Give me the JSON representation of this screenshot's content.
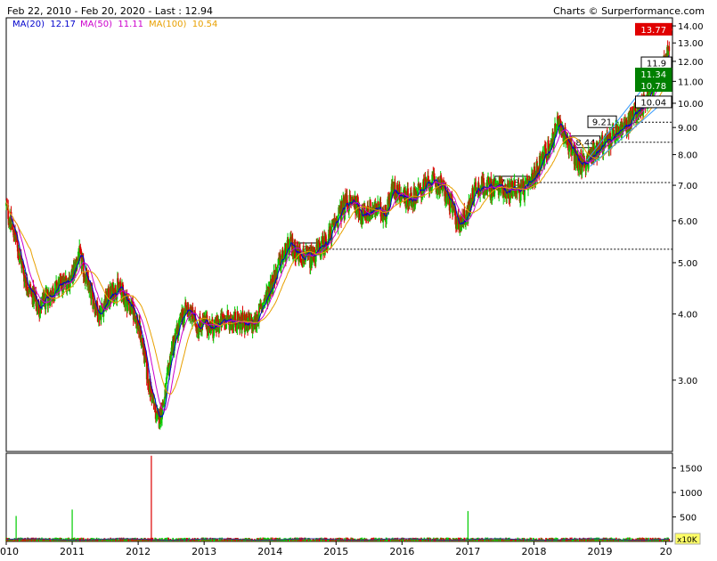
{
  "header": {
    "range_text": "Feb 22, 2010 - Feb 20, 2020 - Last : 12.94",
    "credit_text": "Charts © Surperformance.com"
  },
  "moving_averages": [
    {
      "label": "MA(20)",
      "value": "12.17",
      "color": "#0000cc"
    },
    {
      "label": "MA(50)",
      "value": "11.11",
      "color": "#cc00cc"
    },
    {
      "label": "MA(100)",
      "value": "10.54",
      "color": "#e8a000"
    }
  ],
  "colors": {
    "up": "#00cc00",
    "down": "#dd0000",
    "ma20": "#0000cc",
    "ma50": "#cc00cc",
    "ma100": "#e8a000",
    "trend": "#3399ff",
    "resistance_box": "#e00000",
    "support_box": "#008000",
    "volume_line": "#333399"
  },
  "chart_data": {
    "type": "candlestick",
    "y_scale": "log",
    "ylim": [
      2.2,
      14.5
    ],
    "y_ticks": [
      "3.00",
      "4.00",
      "5.00",
      "6.00",
      "7.00",
      "8.00",
      "9.00",
      "10.00",
      "11.00",
      "12.00",
      "13.00",
      "14.00"
    ],
    "x_labels": [
      "2010",
      "2011",
      "2012",
      "2013",
      "2014",
      "2015",
      "2016",
      "2017",
      "2018",
      "2019",
      "20"
    ],
    "price_path": [
      [
        2010.0,
        6.4
      ],
      [
        2010.15,
        5.5
      ],
      [
        2010.3,
        4.6
      ],
      [
        2010.5,
        4.1
      ],
      [
        2010.7,
        4.4
      ],
      [
        2010.9,
        4.6
      ],
      [
        2011.0,
        4.7
      ],
      [
        2011.1,
        5.2
      ],
      [
        2011.25,
        4.5
      ],
      [
        2011.4,
        4.0
      ],
      [
        2011.55,
        4.3
      ],
      [
        2011.7,
        4.5
      ],
      [
        2011.85,
        4.2
      ],
      [
        2011.95,
        4.0
      ],
      [
        2012.05,
        3.6
      ],
      [
        2012.15,
        3.0
      ],
      [
        2012.3,
        2.5
      ],
      [
        2012.4,
        2.75
      ],
      [
        2012.5,
        3.4
      ],
      [
        2012.65,
        3.9
      ],
      [
        2012.75,
        4.1
      ],
      [
        2012.9,
        3.8
      ],
      [
        2013.0,
        3.85
      ],
      [
        2013.15,
        3.75
      ],
      [
        2013.3,
        3.9
      ],
      [
        2013.45,
        3.9
      ],
      [
        2013.6,
        3.85
      ],
      [
        2013.75,
        3.8
      ],
      [
        2013.9,
        4.2
      ],
      [
        2014.0,
        4.5
      ],
      [
        2014.15,
        5.0
      ],
      [
        2014.3,
        5.4
      ],
      [
        2014.45,
        5.2
      ],
      [
        2014.6,
        5.1
      ],
      [
        2014.75,
        5.3
      ],
      [
        2014.9,
        5.6
      ],
      [
        2015.0,
        6.0
      ],
      [
        2015.15,
        6.5
      ],
      [
        2015.3,
        6.5
      ],
      [
        2015.4,
        6.1
      ],
      [
        2015.5,
        6.3
      ],
      [
        2015.6,
        6.3
      ],
      [
        2015.75,
        6.2
      ],
      [
        2015.85,
        6.9
      ],
      [
        2016.0,
        6.7
      ],
      [
        2016.15,
        6.6
      ],
      [
        2016.3,
        6.9
      ],
      [
        2016.45,
        7.1
      ],
      [
        2016.6,
        7.0
      ],
      [
        2016.75,
        6.4
      ],
      [
        2016.85,
        5.9
      ],
      [
        2017.0,
        6.2
      ],
      [
        2017.1,
        6.9
      ],
      [
        2017.25,
        7.0
      ],
      [
        2017.4,
        6.9
      ],
      [
        2017.5,
        7.0
      ],
      [
        2017.6,
        6.8
      ],
      [
        2017.7,
        7.0
      ],
      [
        2017.8,
        6.8
      ],
      [
        2017.95,
        7.0
      ],
      [
        2018.1,
        7.8
      ],
      [
        2018.25,
        8.3
      ],
      [
        2018.35,
        9.1
      ],
      [
        2018.45,
        8.8
      ],
      [
        2018.55,
        8.3
      ],
      [
        2018.65,
        7.8
      ],
      [
        2018.75,
        7.7
      ],
      [
        2018.85,
        7.9
      ],
      [
        2019.0,
        8.3
      ],
      [
        2019.15,
        8.5
      ],
      [
        2019.3,
        8.9
      ],
      [
        2019.4,
        9.0
      ],
      [
        2019.55,
        9.7
      ],
      [
        2019.7,
        10.1
      ],
      [
        2019.85,
        11.0
      ],
      [
        2020.0,
        12.0
      ],
      [
        2020.05,
        12.94
      ]
    ],
    "volume_ylim": [
      0,
      1800
    ],
    "volume_ticks": [
      "1500",
      "1000",
      "500"
    ],
    "volume_unit": "x10K",
    "volume_spikes": [
      [
        2010.15,
        520
      ],
      [
        2011.0,
        650
      ],
      [
        2012.2,
        1750
      ],
      [
        2017.0,
        620
      ]
    ],
    "levels": [
      {
        "label": "5.30",
        "value": 5.3,
        "x": 2014.73
      },
      {
        "label": "7.085",
        "value": 7.085,
        "x": 2017.93
      },
      {
        "label": "8.44",
        "value": 8.44,
        "x": 2019.0
      },
      {
        "label": "9.21",
        "value": 9.21,
        "x": 2019.25
      }
    ],
    "price_labels": [
      {
        "label": "13.77",
        "value": 13.77,
        "kind": "resistance"
      },
      {
        "label": "11.9",
        "value": 11.9,
        "kind": "plain"
      },
      {
        "label": "11.34",
        "value": 11.34,
        "kind": "support"
      },
      {
        "label": "10.78",
        "value": 10.78,
        "kind": "support"
      },
      {
        "label": "10.04",
        "value": 10.04,
        "kind": "plain"
      }
    ]
  }
}
